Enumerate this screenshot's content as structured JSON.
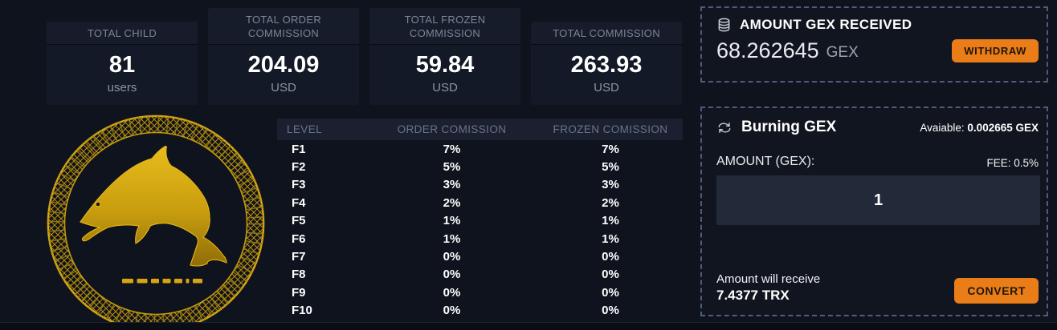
{
  "stats": {
    "cards": [
      {
        "title": "TOTAL CHILD",
        "value": "81",
        "unit": "users"
      },
      {
        "title": "TOTAL ORDER COMMISSION",
        "value": "204.09",
        "unit": "USD"
      },
      {
        "title": "TOTAL FROZEN COMMISSION",
        "value": "59.84",
        "unit": "USD"
      },
      {
        "title": "TOTAL COMMISSION",
        "value": "263.93",
        "unit": "USD"
      }
    ]
  },
  "logo": {
    "description": "gold wireframe dolphin coin emblem"
  },
  "commission_table": {
    "headers": {
      "level": "LEVEL",
      "order": "ORDER COMISSION",
      "frozen": "FROZEN COMISSION"
    },
    "rows": [
      {
        "level": "F1",
        "order": "7%",
        "frozen": "7%"
      },
      {
        "level": "F2",
        "order": "5%",
        "frozen": "5%"
      },
      {
        "level": "F3",
        "order": "3%",
        "frozen": "3%"
      },
      {
        "level": "F4",
        "order": "2%",
        "frozen": "2%"
      },
      {
        "level": "F5",
        "order": "1%",
        "frozen": "1%"
      },
      {
        "level": "F6",
        "order": "1%",
        "frozen": "1%"
      },
      {
        "level": "F7",
        "order": "0%",
        "frozen": "0%"
      },
      {
        "level": "F8",
        "order": "0%",
        "frozen": "0%"
      },
      {
        "level": "F9",
        "order": "0%",
        "frozen": "0%"
      },
      {
        "level": "F10",
        "order": "0%",
        "frozen": "0%"
      }
    ]
  },
  "received_panel": {
    "icon": "database-icon",
    "title": "AMOUNT GEX RECEIVED",
    "amount": "68.262645",
    "currency": "GEX",
    "withdraw_label": "WITHDRAW"
  },
  "burning_panel": {
    "icon": "swap-icon",
    "title": "Burning GEX",
    "available_label": "Avaiable:",
    "available_value": "0.002665 GEX",
    "amount_label": "AMOUNT (GEX):",
    "fee_label": "FEE: 0.5%",
    "input_value": "1",
    "receive_label": "Amount will receive",
    "receive_value": "7.4377 TRX",
    "convert_label": "CONVERT"
  },
  "colors": {
    "accent_orange": "#ea7d18",
    "gold": "#d8a712",
    "dashed_border": "#4e5c7d",
    "page_background": "#0f131d"
  }
}
